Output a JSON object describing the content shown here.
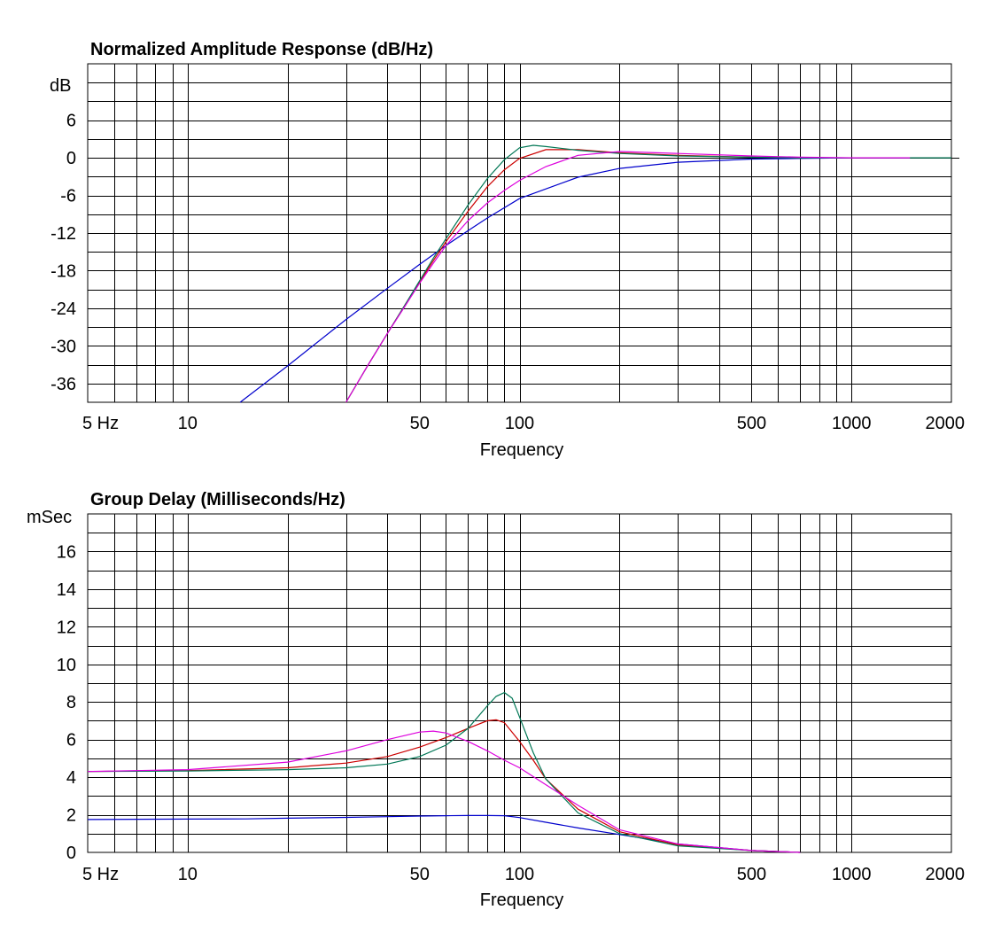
{
  "chart_data": [
    {
      "type": "line",
      "title": "Normalized Amplitude Response (dB/Hz)",
      "xlabel": "Frequency",
      "ylabel": "dB",
      "xscale": "log",
      "xlim": [
        5,
        2000
      ],
      "ylim": [
        -39,
        15
      ],
      "grid": true,
      "x_tick_labels": [
        {
          "value": 5,
          "label": "5  Hz"
        },
        {
          "value": 10,
          "label": "10"
        },
        {
          "value": 50,
          "label": "50"
        },
        {
          "value": 100,
          "label": "100"
        },
        {
          "value": 500,
          "label": "500"
        },
        {
          "value": 1000,
          "label": "1000"
        },
        {
          "value": 2000,
          "label": "2000"
        }
      ],
      "y_tick_labels": [
        {
          "value": 6,
          "label": "6"
        },
        {
          "value": 0,
          "label": "0"
        },
        {
          "value": -6,
          "label": "-6"
        },
        {
          "value": -12,
          "label": "-12"
        },
        {
          "value": -18,
          "label": "-18"
        },
        {
          "value": -24,
          "label": "-24"
        },
        {
          "value": -30,
          "label": "-30"
        },
        {
          "value": -36,
          "label": "-36"
        }
      ],
      "zero_line": true,
      "series": [
        {
          "name": "blue",
          "color": "#0000cc",
          "x": [
            14.4,
            20,
            30,
            40,
            50,
            60,
            70,
            80,
            100,
            150,
            200,
            300,
            500,
            700,
            1000,
            1500
          ],
          "y": [
            -39,
            -33.2,
            -25.8,
            -20.8,
            -17,
            -14,
            -11.6,
            -9.6,
            -6.5,
            -3.1,
            -1.7,
            -0.7,
            -0.2,
            -0.1,
            0,
            0
          ]
        },
        {
          "name": "red",
          "color": "#cc0000",
          "x": [
            30,
            35,
            40,
            45,
            50,
            55,
            60,
            70,
            80,
            90,
            100,
            120,
            150,
            200,
            300,
            500,
            700
          ],
          "y": [
            -39,
            -33,
            -28,
            -23.6,
            -19.8,
            -16.4,
            -13.4,
            -8.5,
            -4.6,
            -1.9,
            -0.1,
            1.3,
            1.3,
            0.8,
            0.4,
            0.1,
            0
          ]
        },
        {
          "name": "green",
          "color": "#007755",
          "x": [
            30,
            35,
            40,
            45,
            50,
            55,
            60,
            70,
            80,
            90,
            100,
            110,
            120,
            150,
            200,
            300,
            500,
            700,
            1000,
            2000
          ],
          "y": [
            -39,
            -33,
            -28,
            -23.6,
            -19.6,
            -16,
            -12.9,
            -7.5,
            -3.3,
            -0.3,
            1.6,
            2.0,
            1.8,
            1.2,
            0.7,
            0.3,
            0.1,
            0,
            0,
            0
          ]
        },
        {
          "name": "magenta",
          "color": "#dd00dd",
          "x": [
            30,
            35,
            40,
            45,
            50,
            55,
            60,
            70,
            80,
            90,
            100,
            120,
            150,
            200,
            300,
            500,
            700,
            1000,
            1500
          ],
          "y": [
            -39,
            -33,
            -28,
            -23.8,
            -20,
            -16.8,
            -14,
            -10,
            -7.2,
            -5.2,
            -3.6,
            -1.4,
            0.4,
            1.0,
            0.7,
            0.3,
            0.1,
            0,
            0
          ]
        }
      ]
    },
    {
      "type": "line",
      "title": "Group Delay (Milliseconds/Hz)",
      "xlabel": "Frequency",
      "ylabel": "mSec",
      "xscale": "log",
      "xlim": [
        5,
        2000
      ],
      "ylim": [
        0,
        18
      ],
      "grid": true,
      "x_tick_labels": [
        {
          "value": 5,
          "label": "5  Hz"
        },
        {
          "value": 10,
          "label": "10"
        },
        {
          "value": 50,
          "label": "50"
        },
        {
          "value": 100,
          "label": "100"
        },
        {
          "value": 500,
          "label": "500"
        },
        {
          "value": 1000,
          "label": "1000"
        },
        {
          "value": 2000,
          "label": "2000"
        }
      ],
      "y_tick_labels": [
        {
          "value": 16,
          "label": "16"
        },
        {
          "value": 14,
          "label": "14"
        },
        {
          "value": 12,
          "label": "12"
        },
        {
          "value": 10,
          "label": "10"
        },
        {
          "value": 8,
          "label": "8"
        },
        {
          "value": 6,
          "label": "6"
        },
        {
          "value": 4,
          "label": "4"
        },
        {
          "value": 2,
          "label": "2"
        },
        {
          "value": 0,
          "label": "0"
        }
      ],
      "zero_line": false,
      "series": [
        {
          "name": "blue",
          "color": "#0000cc",
          "x": [
            5,
            10,
            15,
            20,
            30,
            40,
            50,
            60,
            70,
            80,
            90,
            100,
            120,
            150,
            200,
            300,
            500,
            700
          ],
          "y": [
            1.75,
            1.77,
            1.78,
            1.82,
            1.86,
            1.9,
            1.93,
            1.95,
            1.96,
            1.96,
            1.95,
            1.85,
            1.6,
            1.3,
            0.95,
            0.45,
            0.1,
            0
          ]
        },
        {
          "name": "red",
          "color": "#cc0000",
          "x": [
            5,
            10,
            20,
            30,
            40,
            50,
            60,
            70,
            80,
            85,
            90,
            100,
            110,
            120,
            150,
            200,
            300,
            500,
            700
          ],
          "y": [
            4.3,
            4.35,
            4.5,
            4.75,
            5.1,
            5.6,
            6.1,
            6.6,
            7.0,
            7.05,
            6.9,
            5.9,
            4.9,
            3.9,
            2.3,
            1.1,
            0.4,
            0.1,
            0
          ]
        },
        {
          "name": "green",
          "color": "#007755",
          "x": [
            5,
            10,
            20,
            30,
            40,
            50,
            60,
            70,
            80,
            85,
            90,
            95,
            100,
            110,
            120,
            150,
            200,
            300,
            500,
            700
          ],
          "y": [
            4.3,
            4.33,
            4.4,
            4.5,
            4.7,
            5.1,
            5.7,
            6.6,
            7.8,
            8.3,
            8.5,
            8.2,
            7.2,
            5.3,
            3.9,
            2.1,
            1.0,
            0.35,
            0.1,
            0
          ]
        },
        {
          "name": "magenta",
          "color": "#dd00dd",
          "x": [
            5,
            10,
            20,
            30,
            40,
            50,
            55,
            60,
            70,
            80,
            90,
            100,
            120,
            150,
            200,
            300,
            500,
            700
          ],
          "y": [
            4.3,
            4.4,
            4.8,
            5.4,
            6.0,
            6.4,
            6.45,
            6.35,
            5.9,
            5.4,
            4.9,
            4.5,
            3.6,
            2.5,
            1.2,
            0.45,
            0.1,
            0
          ]
        }
      ]
    }
  ]
}
